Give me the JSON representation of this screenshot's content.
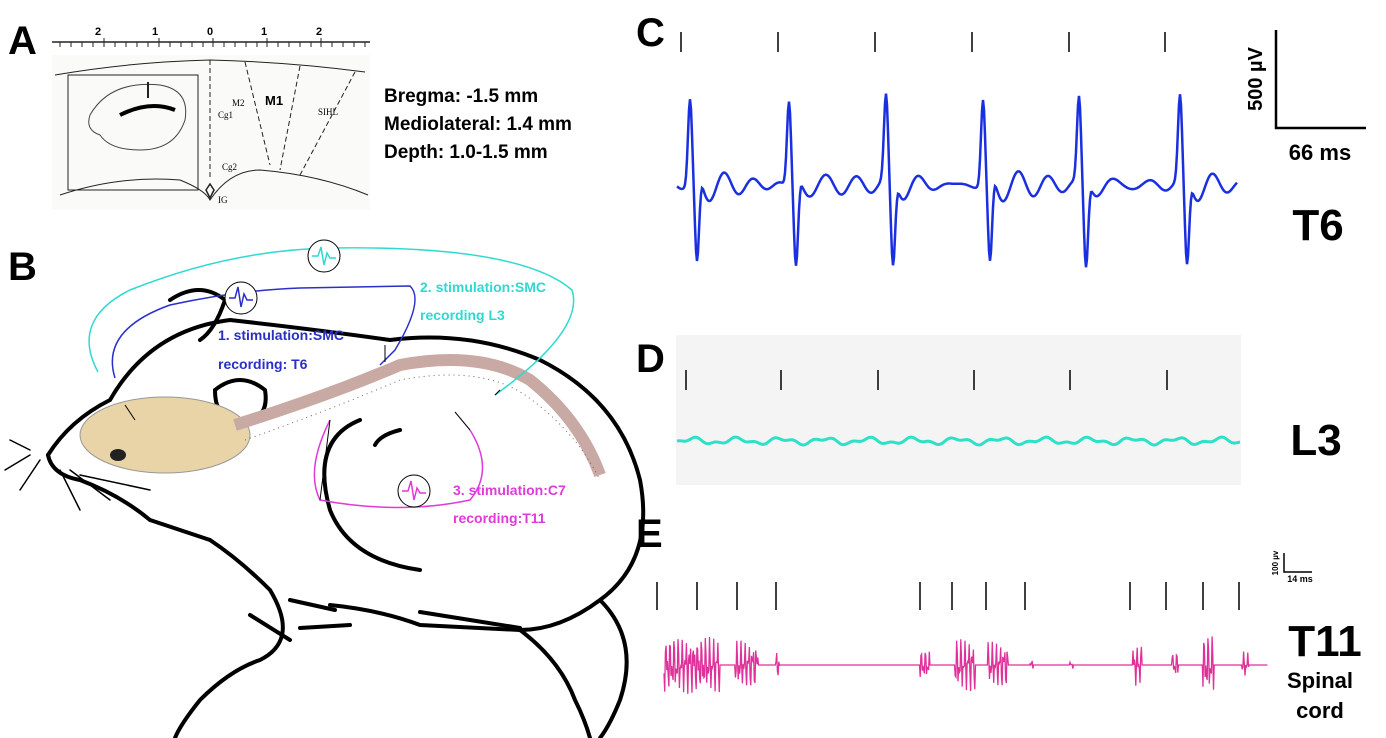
{
  "panels": {
    "a": {
      "label": "A",
      "ruler": [
        "2",
        "1",
        "0",
        "1",
        "2"
      ],
      "atlas": [
        "M2",
        "M1",
        "SIHL",
        "Cg1",
        "Cg2",
        "IG"
      ],
      "coords": [
        "Bregma: -1.5 mm",
        "Mediolateral: 1.4 mm",
        "Depth: 1.0-1.5 mm"
      ]
    },
    "b": {
      "label": "B",
      "pathways": [
        {
          "stimulation": "1. stimulation:SMC",
          "recording": "recording: T6"
        },
        {
          "stimulation": "2. stimulation:SMC",
          "recording": "recording L3"
        },
        {
          "stimulation": "3.  stimulation:C7",
          "recording": "recording:T11"
        }
      ]
    },
    "c": {
      "label": "C",
      "scale_v": "500 µV",
      "scale_t": "66 ms",
      "site": "T6"
    },
    "d": {
      "label": "D",
      "site": "L3"
    },
    "e": {
      "label": "E",
      "scale_v": "100 µv",
      "scale_t": "14 ms",
      "site": "T11",
      "site_note": [
        "Spinal",
        "cord"
      ]
    }
  }
}
